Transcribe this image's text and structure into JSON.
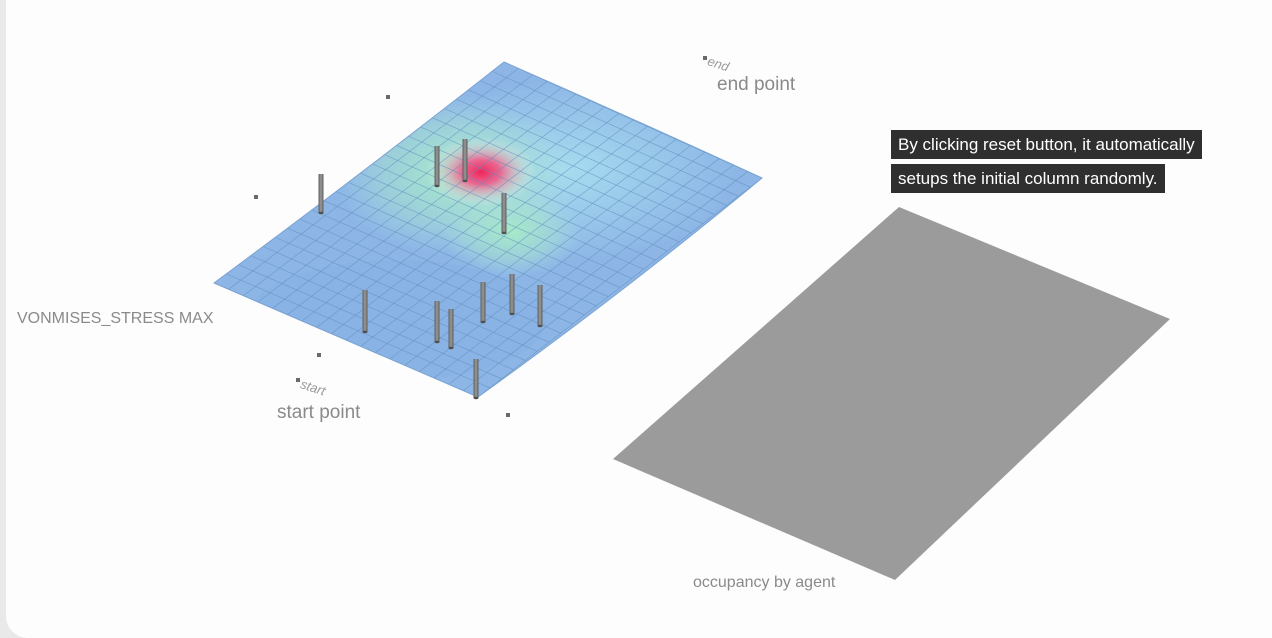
{
  "labels": {
    "end_tag": "end",
    "end_point": "end point",
    "start_tag": "start",
    "start_point": "start point",
    "metric": "VONMISES_STRESS MAX",
    "occupancy": "occupancy by agent"
  },
  "tooltip": {
    "line1": "By clicking reset button, it automatically",
    "line2": "setups the initial column randomly."
  },
  "colors": {
    "surface_base": "#8db6e6",
    "stress_high": "#f0245a",
    "stress_mid": "#a6ecc6",
    "grid": "#5f8fbf",
    "column": "#7a7a7a",
    "occupancy_plane": "#9b9b9b",
    "tooltip_bg": "#2f2f2f"
  }
}
